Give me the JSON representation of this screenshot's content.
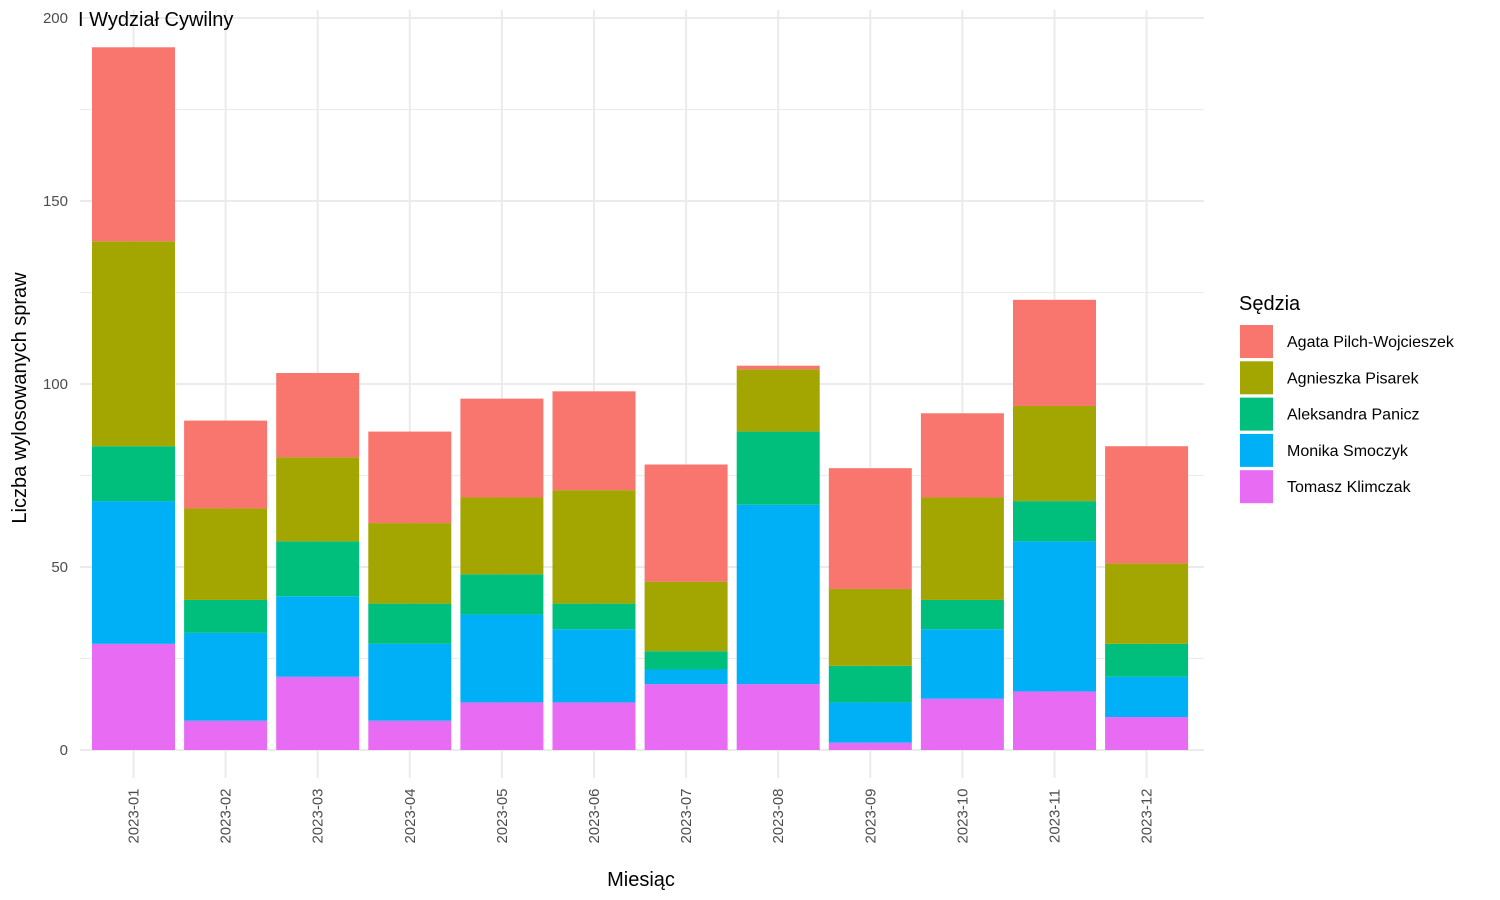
{
  "chart_data": {
    "type": "bar",
    "stacked": true,
    "title": "I Wydział Cywilny",
    "xlabel": "Miesiąc",
    "ylabel": "Liczba wylosowanych spraw",
    "ylim": [
      0,
      200
    ],
    "yticks": [
      "0",
      "50",
      "100",
      "150",
      "200"
    ],
    "grid": true,
    "legend_title": "Sędzia",
    "legend_position": "right",
    "categories": [
      "2023-01",
      "2023-02",
      "2023-03",
      "2023-04",
      "2023-05",
      "2023-06",
      "2023-07",
      "2023-08",
      "2023-09",
      "2023-10",
      "2023-11",
      "2023-12"
    ],
    "series": [
      {
        "name": "Agata Pilch-Wojcieszek",
        "color": "#F8766D",
        "values": [
          53,
          24,
          23,
          25,
          27,
          27,
          32,
          1,
          33,
          23,
          29,
          32
        ]
      },
      {
        "name": "Agnieszka Pisarek",
        "color": "#A3A500",
        "values": [
          56,
          25,
          23,
          22,
          21,
          31,
          19,
          17,
          21,
          28,
          26,
          22
        ]
      },
      {
        "name": "Aleksandra Panicz",
        "color": "#00BF7D",
        "values": [
          15,
          9,
          15,
          11,
          11,
          7,
          5,
          20,
          10,
          8,
          11,
          9
        ]
      },
      {
        "name": "Monika Smoczyk",
        "color": "#00B0F6",
        "values": [
          39,
          24,
          22,
          21,
          24,
          20,
          4,
          49,
          11,
          19,
          41,
          11
        ]
      },
      {
        "name": "Tomasz Klimczak",
        "color": "#E76BF3",
        "values": [
          29,
          8,
          20,
          8,
          13,
          13,
          18,
          18,
          2,
          14,
          16,
          9
        ]
      }
    ]
  }
}
